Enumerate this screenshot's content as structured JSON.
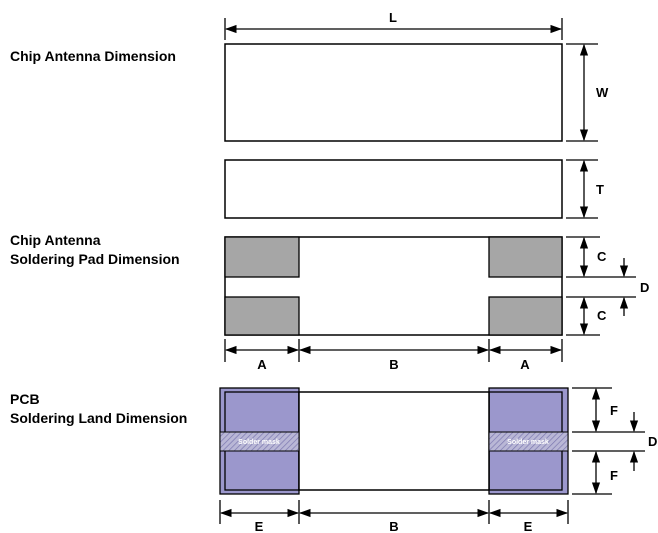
{
  "sections": {
    "chip_dimension_title": "Chip Antenna Dimension",
    "pad_title_line1": "Chip Antenna",
    "pad_title_line2": "Soldering Pad Dimension",
    "pcb_title_line1": "PCB",
    "pcb_title_line2": "Soldering Land Dimension"
  },
  "dimensions": {
    "L": "L",
    "W": "W",
    "T": "T",
    "C": "C",
    "D": "D",
    "A": "A",
    "B": "B",
    "E": "E",
    "F": "F"
  },
  "solder_mask_label": "Solder mask",
  "colors": {
    "pad_fill": "#a6a6a6",
    "land_fill": "#9b97cc",
    "outline": "#000000"
  }
}
